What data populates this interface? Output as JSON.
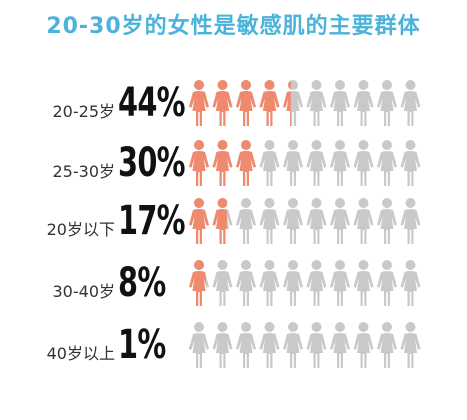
{
  "title": "20-30岁的女性是敏感肌的主要群体",
  "colors": {
    "title": "#4bb3d9",
    "highlight": "#f08a6e",
    "base": "#c9c9c9"
  },
  "chart_data": {
    "type": "pictograph",
    "title": "20-30岁的女性是敏感肌的主要群体",
    "icons_per_row": 10,
    "categories": [
      "20-25岁",
      "25-30岁",
      "20岁以下",
      "30-40岁",
      "40岁以上"
    ],
    "values": [
      44,
      30,
      17,
      8,
      1
    ],
    "value_labels": [
      "44%",
      "30%",
      "17%",
      "8%",
      "1%"
    ],
    "unit": "%"
  }
}
